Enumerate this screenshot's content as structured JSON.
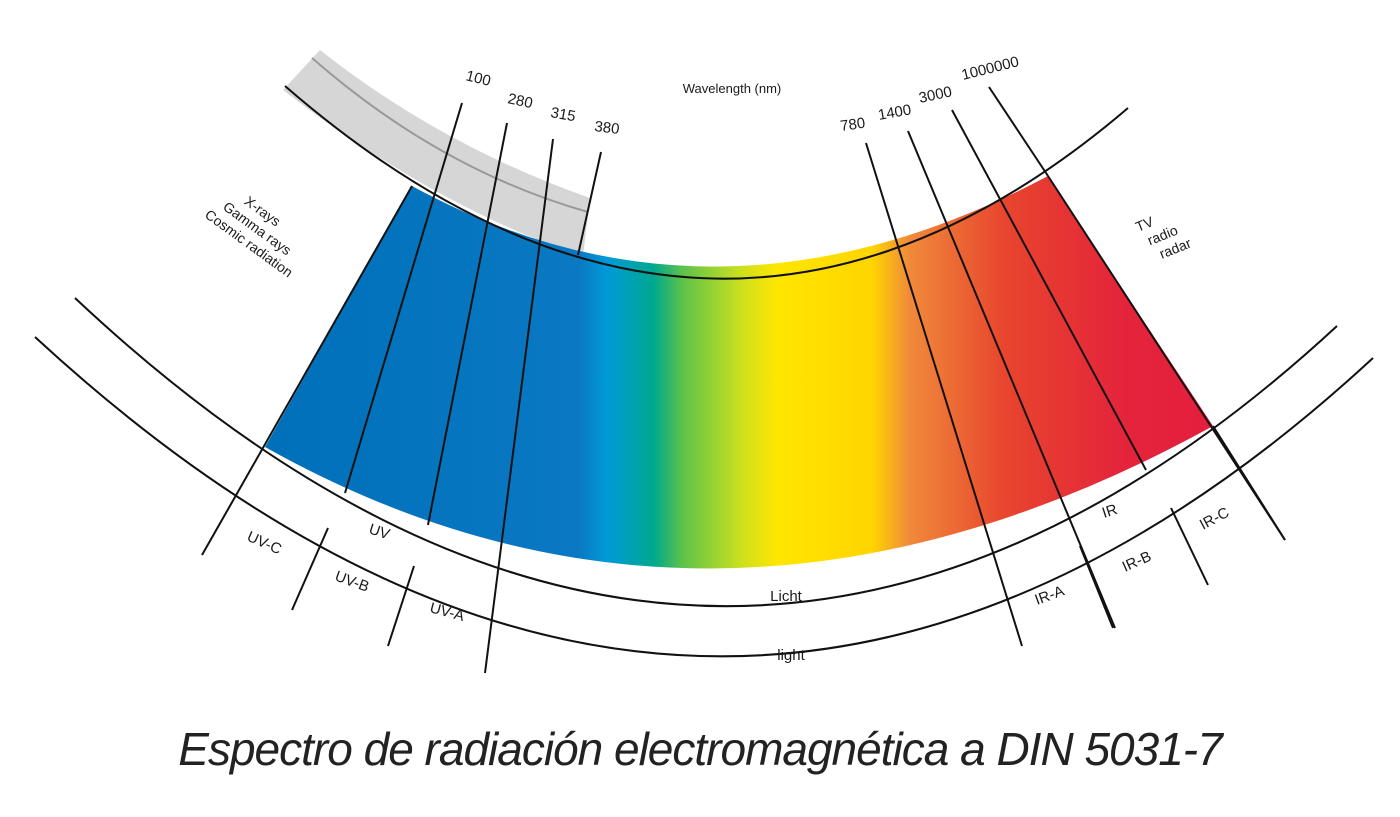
{
  "diagram": {
    "axis_title": "Wavelength (nm)",
    "wavelength_ticks": [
      "100",
      "280",
      "315",
      "380",
      "780",
      "1400",
      "3000",
      "1000000"
    ],
    "left_labels": [
      "X-rays",
      "Gamma rays",
      "Cosmic radiation"
    ],
    "right_labels": [
      "TV",
      "radio",
      "radar"
    ],
    "bands": {
      "uv": "UV",
      "uv_c": "UV-C",
      "uv_b": "UV-B",
      "uv_a": "UV-A",
      "light_de": "Licht",
      "light_en": "light",
      "ir": "IR",
      "ir_a": "IR-A",
      "ir_b": "IR-B",
      "ir_c": "IR-C"
    },
    "colors": {
      "uv_blue": "#0072BC",
      "cyan": "#0099D8",
      "green": "#00A650",
      "yellow": "#FFE600",
      "orange": "#F39C12",
      "red": "#E41E3F",
      "grey_band": "#d6d6d6"
    }
  },
  "title": "Espectro de radiación electromagnética a DIN 5031-7"
}
